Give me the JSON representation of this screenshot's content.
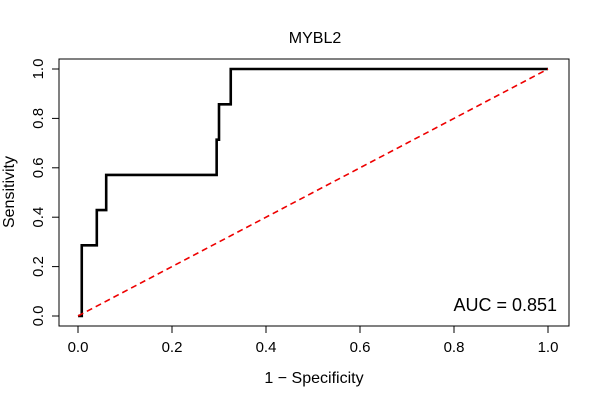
{
  "chart_data": {
    "type": "line",
    "title": "MYBL2",
    "xlabel": "1 − Specificity",
    "ylabel": "Sensitivity",
    "xlim": [
      0,
      1
    ],
    "ylim": [
      0,
      1
    ],
    "xticks": [
      0,
      0.2,
      0.4,
      0.6,
      0.8,
      1
    ],
    "xtick_labels": [
      "0.0",
      "0.2",
      "0.4",
      "0.6",
      "0.8",
      "1.0"
    ],
    "yticks": [
      0,
      0.2,
      0.4,
      0.6,
      0.8,
      1
    ],
    "ytick_labels": [
      "0.0",
      "0.2",
      "0.4",
      "0.6",
      "0.8",
      "1.0"
    ],
    "grid": false,
    "annotation": "AUC = 0.851",
    "series": [
      {
        "color": "#000000",
        "x": [
          0,
          0.008,
          0.008,
          0.04,
          0.04,
          0.06,
          0.06,
          0.295,
          0.295,
          0.3,
          0.3,
          0.325,
          0.325,
          1.0
        ],
        "y": [
          0,
          0,
          0.286,
          0.286,
          0.429,
          0.429,
          0.571,
          0.571,
          0.714,
          0.714,
          0.857,
          0.857,
          1.0,
          1.0
        ]
      },
      {
        "color": "#ee0000",
        "dashed": true,
        "x": [
          0,
          1
        ],
        "y": [
          0,
          1
        ]
      }
    ]
  }
}
